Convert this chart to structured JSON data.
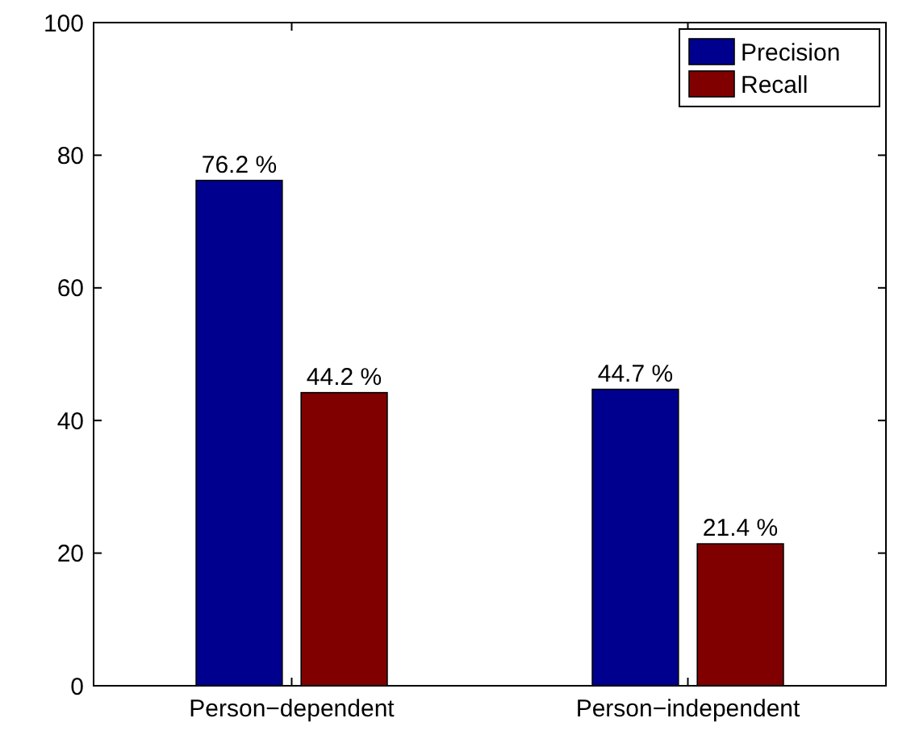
{
  "chart_data": {
    "type": "bar",
    "categories": [
      "Person−dependent",
      "Person−independent"
    ],
    "series": [
      {
        "name": "Precision",
        "color": "#00008f",
        "values": [
          76.2,
          44.7
        ],
        "value_labels": [
          "76.2 %",
          "44.7 %"
        ]
      },
      {
        "name": "Recall",
        "color": "#800000",
        "values": [
          44.2,
          21.4
        ],
        "value_labels": [
          "44.2 %",
          "21.4 %"
        ]
      }
    ],
    "ylim": [
      0,
      100
    ],
    "yticks": [
      0,
      20,
      40,
      60,
      80,
      100
    ],
    "grid": false,
    "legend": "top right"
  }
}
